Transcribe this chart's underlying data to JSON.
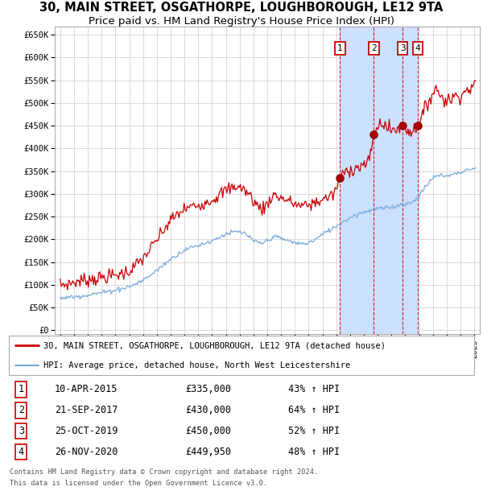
{
  "title1": "30, MAIN STREET, OSGATHORPE, LOUGHBOROUGH, LE12 9TA",
  "title2": "Price paid vs. HM Land Registry's House Price Index (HPI)",
  "legend_line1": "30, MAIN STREET, OSGATHORPE, LOUGHBOROUGH, LE12 9TA (detached house)",
  "legend_line2": "HPI: Average price, detached house, North West Leicestershire",
  "footer1": "Contains HM Land Registry data © Crown copyright and database right 2024.",
  "footer2": "This data is licensed under the Open Government Licence v3.0.",
  "sale_points": [
    {
      "num": 1,
      "date": "10-APR-2015",
      "price": "£335,000",
      "pct": "43% ↑ HPI",
      "x_num": 2015.275,
      "y_val": 335000
    },
    {
      "num": 2,
      "date": "21-SEP-2017",
      "price": "£430,000",
      "pct": "64% ↑ HPI",
      "x_num": 2017.725,
      "y_val": 430000
    },
    {
      "num": 3,
      "date": "25-OCT-2019",
      "price": "£450,000",
      "pct": "52% ↑ HPI",
      "x_num": 2019.815,
      "y_val": 450000
    },
    {
      "num": 4,
      "date": "26-NOV-2020",
      "price": "£449,950",
      "pct": "48% ↑ HPI",
      "x_num": 2020.899,
      "y_val": 449950
    }
  ],
  "red_color": "#cc0000",
  "blue_color": "#7aaadd",
  "shade_color": "#cce0ff",
  "yticks": [
    0,
    50000,
    100000,
    150000,
    200000,
    250000,
    300000,
    350000,
    400000,
    450000,
    500000,
    550000,
    600000,
    650000
  ],
  "ylim": [
    -8000,
    668000
  ],
  "xlim_start": 1994.6,
  "xlim_end": 2025.4,
  "title_fontsize": 10.5,
  "subtitle_fontsize": 9.5,
  "red_noise_seed": 42,
  "blue_noise_seed": 7
}
